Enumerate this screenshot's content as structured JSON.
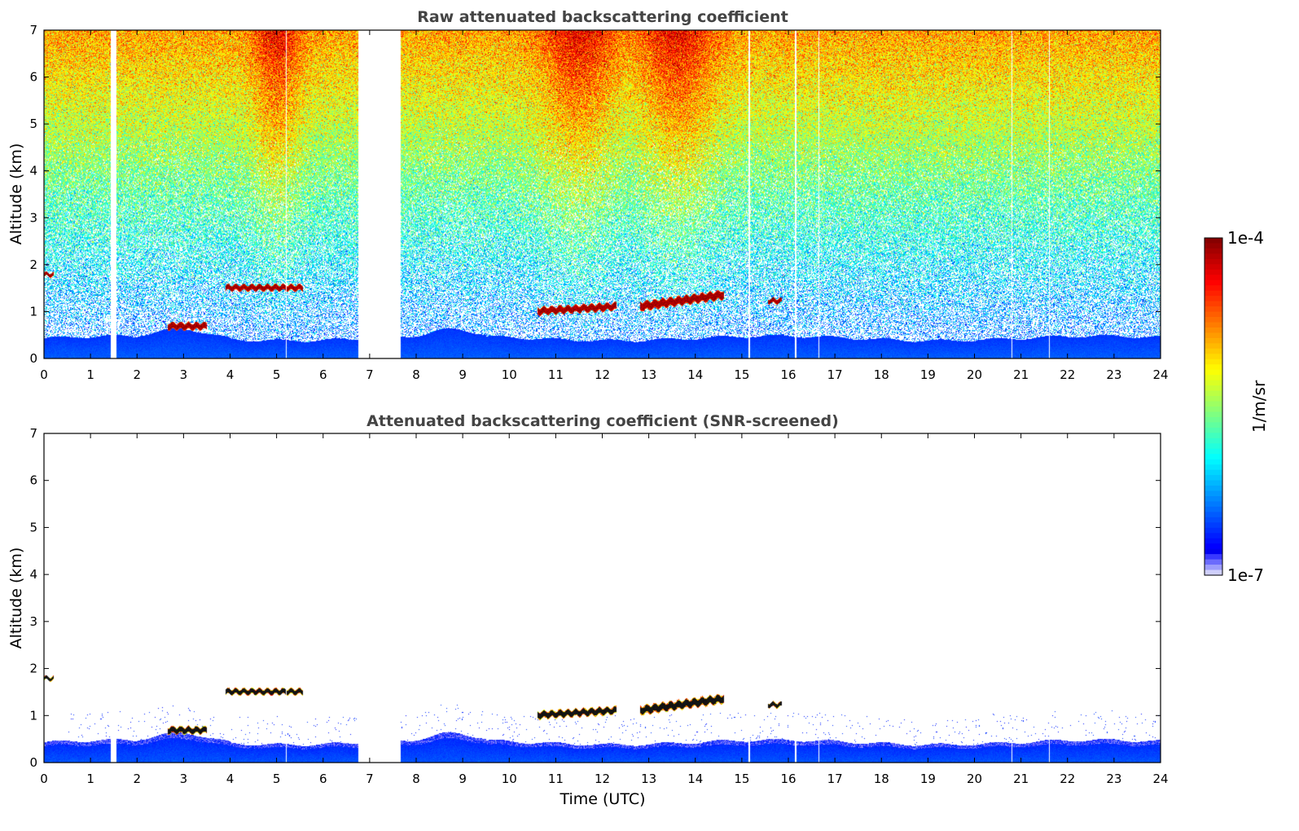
{
  "chart_data": [
    {
      "type": "heatmap",
      "title": "Raw attenuated backscattering coefficient",
      "xlabel": "",
      "ylabel": "Altitude (km)",
      "xlim": [
        0,
        24
      ],
      "ylim": [
        0,
        7
      ],
      "xticks": [
        "0",
        "1",
        "2",
        "3",
        "4",
        "5",
        "6",
        "7",
        "8",
        "9",
        "10",
        "11",
        "12",
        "13",
        "14",
        "15",
        "16",
        "17",
        "18",
        "19",
        "20",
        "21",
        "22",
        "23",
        "24"
      ],
      "yticks": [
        "0",
        "1",
        "2",
        "3",
        "4",
        "5",
        "6",
        "7"
      ],
      "data_gaps_hours": [
        [
          1.43,
          1.55
        ],
        [
          6.75,
          7.65
        ]
      ],
      "thin_gaps_hours": [
        5.2,
        15.15,
        16.15,
        16.65,
        20.8,
        21.6
      ],
      "features": [
        {
          "name": "surface-aerosol-layer",
          "hours": [
            0,
            24
          ],
          "altitude_km": [
            0,
            0.5
          ],
          "level": "low-mid"
        },
        {
          "name": "cloud",
          "hours": [
            0,
            0.2
          ],
          "altitude_km": 1.78,
          "thickness_km": 0.08
        },
        {
          "name": "cloud",
          "hours": [
            2.65,
            3.5
          ],
          "altitude_km": 0.68,
          "thickness_km": 0.14
        },
        {
          "name": "cloud",
          "hours": [
            3.9,
            5.55
          ],
          "altitude_km": 1.5,
          "thickness_km": 0.12
        },
        {
          "name": "cloud",
          "hours": [
            10.6,
            12.3
          ],
          "altitude_km": [
            1.0,
            1.1
          ],
          "thickness_km": 0.15
        },
        {
          "name": "cloud",
          "hours": [
            12.8,
            14.6
          ],
          "altitude_km": [
            1.1,
            1.35
          ],
          "thickness_km": 0.18
        },
        {
          "name": "cloud",
          "hours": [
            15.55,
            15.85
          ],
          "altitude_km": 1.22,
          "thickness_km": 0.1
        }
      ],
      "noise_hot_hours": [
        [
          4.5,
          5.5
        ],
        [
          10.7,
          12.3
        ],
        [
          12.8,
          14.4
        ]
      ]
    },
    {
      "type": "heatmap",
      "title": "Attenuated backscattering coefficient (SNR-screened)",
      "xlabel": "Time (UTC)",
      "ylabel": "Altitude (km)",
      "xlim": [
        0,
        24
      ],
      "ylim": [
        0,
        7
      ],
      "xticks": [
        "0",
        "1",
        "2",
        "3",
        "4",
        "5",
        "6",
        "7",
        "8",
        "9",
        "10",
        "11",
        "12",
        "13",
        "14",
        "15",
        "16",
        "17",
        "18",
        "19",
        "20",
        "21",
        "22",
        "23",
        "24"
      ],
      "yticks": [
        "0",
        "1",
        "2",
        "3",
        "4",
        "5",
        "6",
        "7"
      ],
      "screened": true
    }
  ],
  "colorbar": {
    "label": "1/m/sr",
    "max_label": "1e-4",
    "min_label": "1e-7",
    "scale": "log",
    "colormap": "jet"
  }
}
